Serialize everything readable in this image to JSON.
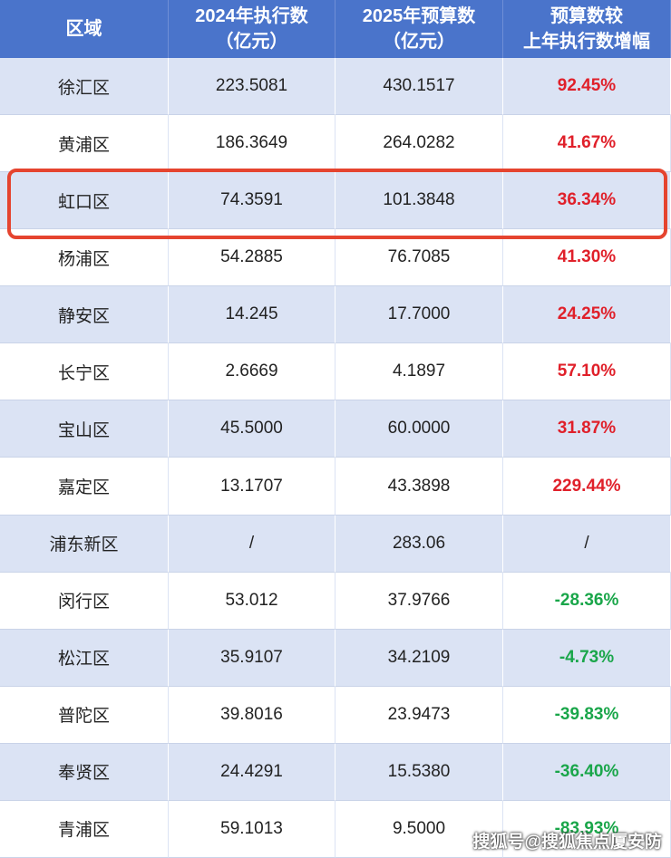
{
  "table": {
    "header": [
      "区域",
      "2024年执行数\n（亿元）",
      "2025年预算数\n（亿元）",
      "预算数较\n上年执行数增幅"
    ],
    "rows": [
      [
        "徐汇区",
        "223.5081",
        "430.1517",
        "92.45%"
      ],
      [
        "黄浦区",
        "186.3649",
        "264.0282",
        "41.67%"
      ],
      [
        "虹口区",
        "74.3591",
        "101.3848",
        "36.34%"
      ],
      [
        "杨浦区",
        "54.2885",
        "76.7085",
        "41.30%"
      ],
      [
        "静安区",
        "14.245",
        "17.7000",
        "24.25%"
      ],
      [
        "长宁区",
        "2.6669",
        "4.1897",
        "57.10%"
      ],
      [
        "宝山区",
        "45.5000",
        "60.0000",
        "31.87%"
      ],
      [
        "嘉定区",
        "13.1707",
        "43.3898",
        "229.44%"
      ],
      [
        "浦东新区",
        "/",
        "283.06",
        "/"
      ],
      [
        "闵行区",
        "53.012",
        "37.9766",
        "-28.36%"
      ],
      [
        "松江区",
        "35.9107",
        "34.2109",
        "-4.73%"
      ],
      [
        "普陀区",
        "39.8016",
        "23.9473",
        "-39.83%"
      ],
      [
        "奉贤区",
        "24.4291",
        "15.5380",
        "-36.40%"
      ],
      [
        "青浦区",
        "59.1013",
        "9.5000",
        "-83.93%"
      ]
    ],
    "highlighted_row": 2
  },
  "watermark": "搜狐号@搜狐焦点厦安防"
}
